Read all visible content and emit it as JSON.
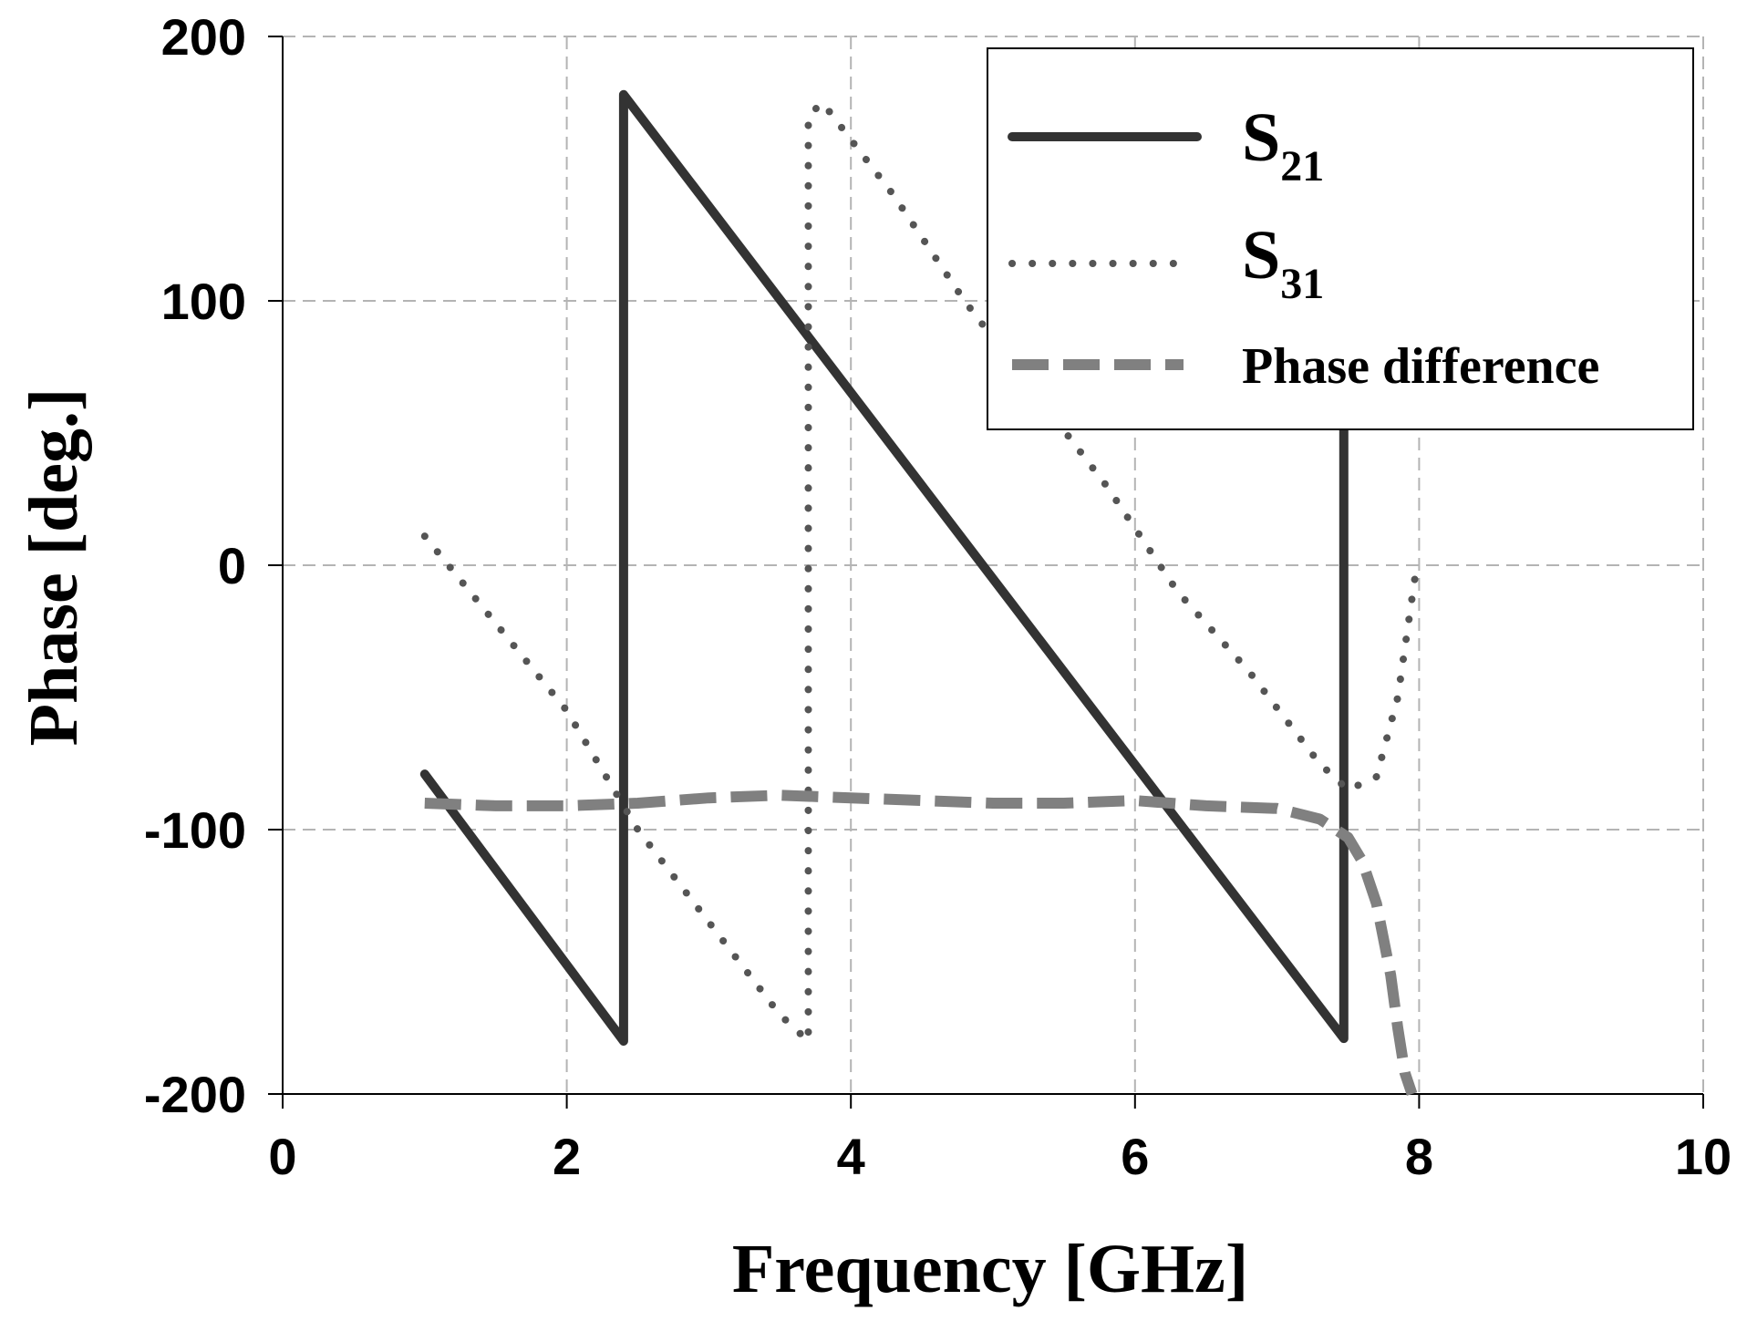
{
  "chart_data": {
    "type": "line",
    "title": "",
    "xlabel": "Frequency [GHz]",
    "ylabel": "Phase [deg.]",
    "xlim": [
      0,
      10
    ],
    "ylim": [
      -200,
      200
    ],
    "xticks": [
      0,
      2,
      4,
      6,
      8,
      10
    ],
    "yticks": [
      -200,
      -100,
      0,
      100,
      200
    ],
    "xtick_labels": [
      "0",
      "2",
      "4",
      "6",
      "8",
      "10"
    ],
    "ytick_labels": [
      "-200",
      "-100",
      "0",
      "100",
      "200"
    ],
    "grid": true,
    "legend_position": "top-right",
    "series": [
      {
        "name": "S21",
        "label_main": "S",
        "label_sub": "21",
        "style": "solid",
        "color": "#333333",
        "x": [
          1.0,
          2.4,
          2.4,
          7.47,
          7.47
        ],
        "y": [
          -79,
          -180,
          178,
          -179,
          55
        ]
      },
      {
        "name": "S31",
        "label_main": "S",
        "label_sub": "31",
        "style": "dotted",
        "color": "#555555",
        "x": [
          1.0,
          2.0,
          2.5,
          3.0,
          3.5,
          3.7,
          3.7,
          3.8,
          4.3,
          4.8,
          5.3,
          5.8,
          6.3,
          6.8,
          7.3,
          7.5,
          7.7,
          7.85,
          7.97
        ],
        "y": [
          11,
          -55,
          -100,
          -135,
          -170,
          -180,
          170,
          175,
          140,
          100,
          65,
          30,
          -10,
          -40,
          -75,
          -85,
          -80,
          -50,
          -5
        ]
      },
      {
        "name": "Phase difference",
        "label_main": "Phase difference",
        "label_sub": "",
        "style": "dashed",
        "color": "#808080",
        "x": [
          1.0,
          1.5,
          2.0,
          2.5,
          3.0,
          3.5,
          4.0,
          4.5,
          5.0,
          5.5,
          6.0,
          6.5,
          7.0,
          7.3,
          7.5,
          7.6,
          7.7,
          7.8,
          7.85,
          7.9,
          7.95
        ],
        "y": [
          -90,
          -91,
          -91,
          -90,
          -88,
          -87,
          -88,
          -89,
          -90,
          -90,
          -89,
          -91,
          -92,
          -96,
          -103,
          -112,
          -128,
          -155,
          -175,
          -192,
          -200
        ]
      }
    ]
  }
}
